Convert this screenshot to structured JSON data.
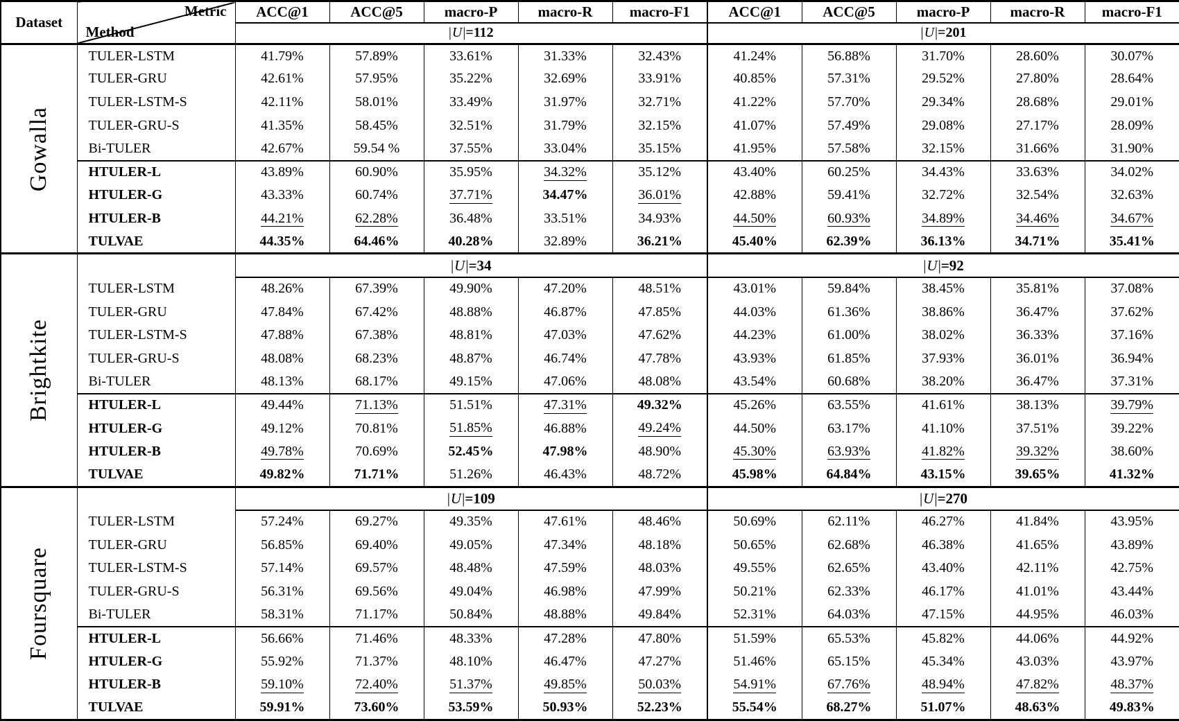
{
  "header": {
    "dataset_label": "Dataset",
    "metric_label": "Metric",
    "method_label": "Method",
    "metrics": [
      "ACC@1",
      "ACC@5",
      "macro-P",
      "macro-R",
      "macro-F1",
      "ACC@1",
      "ACC@5",
      "macro-P",
      "macro-R",
      "macro-F1"
    ]
  },
  "u_notation": {
    "bar": "|",
    "letter": "U",
    "equals": "="
  },
  "sections": [
    {
      "dataset": "Gowalla",
      "group_sizes": [
        "112",
        "201"
      ],
      "rows": [
        {
          "method": "TULER-LSTM",
          "bold": false,
          "values": [
            "41.79%",
            "57.89%",
            "33.61%",
            "31.33%",
            "32.43%",
            "41.24%",
            "56.88%",
            "31.70%",
            "28.60%",
            "30.07%"
          ],
          "styles": [
            "",
            "",
            "",
            "",
            "",
            "",
            "",
            "",
            "",
            ""
          ]
        },
        {
          "method": "TULER-GRU",
          "bold": false,
          "values": [
            "42.61%",
            "57.95%",
            "35.22%",
            "32.69%",
            "33.91%",
            "40.85%",
            "57.31%",
            "29.52%",
            "27.80%",
            "28.64%"
          ],
          "styles": [
            "",
            "",
            "",
            "",
            "",
            "",
            "",
            "",
            "",
            ""
          ]
        },
        {
          "method": "TULER-LSTM-S",
          "bold": false,
          "values": [
            "42.11%",
            "58.01%",
            "33.49%",
            "31.97%",
            "32.71%",
            "41.22%",
            "57.70%",
            "29.34%",
            "28.68%",
            "29.01%"
          ],
          "styles": [
            "",
            "",
            "",
            "",
            "",
            "",
            "",
            "",
            "",
            ""
          ]
        },
        {
          "method": "TULER-GRU-S",
          "bold": false,
          "values": [
            "41.35%",
            "58.45%",
            "32.51%",
            "31.79%",
            "32.15%",
            "41.07%",
            "57.49%",
            "29.08%",
            "27.17%",
            "28.09%"
          ],
          "styles": [
            "",
            "",
            "",
            "",
            "",
            "",
            "",
            "",
            "",
            ""
          ]
        },
        {
          "method": "Bi-TULER",
          "bold": false,
          "values": [
            "42.67%",
            "59.54 %",
            "37.55%",
            "33.04%",
            "35.15%",
            "41.95%",
            "57.58%",
            "32.15%",
            "31.66%",
            "31.90%"
          ],
          "styles": [
            "",
            "",
            "",
            "",
            "",
            "",
            "",
            "",
            "",
            ""
          ]
        },
        {
          "method": "HTULER-L",
          "bold": true,
          "values": [
            "43.89%",
            "60.90%",
            "35.95%",
            "34.32%",
            "35.12%",
            "43.40%",
            "60.25%",
            "34.43%",
            "33.63%",
            "34.02%"
          ],
          "styles": [
            "",
            "",
            "",
            "u",
            "",
            "",
            "",
            "",
            "",
            ""
          ]
        },
        {
          "method": "HTULER-G",
          "bold": true,
          "values": [
            "43.33%",
            "60.74%",
            "37.71%",
            "34.47%",
            "36.01%",
            "42.88%",
            "59.41%",
            "32.72%",
            "32.54%",
            "32.63%"
          ],
          "styles": [
            "",
            "",
            "u",
            "b",
            "u",
            "",
            "",
            "",
            "",
            ""
          ]
        },
        {
          "method": "HTULER-B",
          "bold": true,
          "values": [
            "44.21%",
            "62.28%",
            "36.48%",
            "33.51%",
            "34.93%",
            "44.50%",
            "60.93%",
            "34.89%",
            "34.46%",
            "34.67%"
          ],
          "styles": [
            "u",
            "u",
            "",
            "",
            "",
            "u",
            "u",
            "u",
            "u",
            "u"
          ]
        },
        {
          "method": "TULVAE",
          "bold": true,
          "values": [
            "44.35%",
            "64.46%",
            "40.28%",
            "32.89%",
            "36.21%",
            "45.40%",
            "62.39%",
            "36.13%",
            "34.71%",
            "35.41%"
          ],
          "styles": [
            "b",
            "b",
            "b",
            "",
            "b",
            "b",
            "b",
            "b",
            "b",
            "b"
          ]
        }
      ]
    },
    {
      "dataset": "Brightkite",
      "group_sizes": [
        "34",
        "92"
      ],
      "rows": [
        {
          "method": "TULER-LSTM",
          "bold": false,
          "values": [
            "48.26%",
            "67.39%",
            "49.90%",
            "47.20%",
            "48.51%",
            "43.01%",
            "59.84%",
            "38.45%",
            "35.81%",
            "37.08%"
          ],
          "styles": [
            "",
            "",
            "",
            "",
            "",
            "",
            "",
            "",
            "",
            ""
          ]
        },
        {
          "method": "TULER-GRU",
          "bold": false,
          "values": [
            "47.84%",
            "67.42%",
            "48.88%",
            "46.87%",
            "47.85%",
            "44.03%",
            "61.36%",
            "38.86%",
            "36.47%",
            "37.62%"
          ],
          "styles": [
            "",
            "",
            "",
            "",
            "",
            "",
            "",
            "",
            "",
            ""
          ]
        },
        {
          "method": "TULER-LSTM-S",
          "bold": false,
          "values": [
            "47.88%",
            "67.38%",
            "48.81%",
            "47.03%",
            "47.62%",
            "44.23%",
            "61.00%",
            "38.02%",
            "36.33%",
            "37.16%"
          ],
          "styles": [
            "",
            "",
            "",
            "",
            "",
            "",
            "",
            "",
            "",
            ""
          ]
        },
        {
          "method": "TULER-GRU-S",
          "bold": false,
          "values": [
            "48.08%",
            "68.23%",
            "48.87%",
            "46.74%",
            "47.78%",
            "43.93%",
            "61.85%",
            "37.93%",
            "36.01%",
            "36.94%"
          ],
          "styles": [
            "",
            "",
            "",
            "",
            "",
            "",
            "",
            "",
            "",
            ""
          ]
        },
        {
          "method": "Bi-TULER",
          "bold": false,
          "values": [
            "48.13%",
            "68.17%",
            "49.15%",
            "47.06%",
            "48.08%",
            "43.54%",
            "60.68%",
            "38.20%",
            "36.47%",
            "37.31%"
          ],
          "styles": [
            "",
            "",
            "",
            "",
            "",
            "",
            "",
            "",
            "",
            ""
          ]
        },
        {
          "method": "HTULER-L",
          "bold": true,
          "values": [
            "49.44%",
            "71.13%",
            "51.51%",
            "47.31%",
            "49.32%",
            "45.26%",
            "63.55%",
            "41.61%",
            "38.13%",
            "39.79%"
          ],
          "styles": [
            "",
            "u",
            "",
            "u",
            "b",
            "",
            "",
            "",
            "",
            "u"
          ]
        },
        {
          "method": "HTULER-G",
          "bold": true,
          "values": [
            "49.12%",
            "70.81%",
            "51.85%",
            "46.88%",
            "49.24%",
            "44.50%",
            "63.17%",
            "41.10%",
            "37.51%",
            "39.22%"
          ],
          "styles": [
            "",
            "",
            "u",
            "",
            "u",
            "",
            "",
            "",
            "",
            ""
          ]
        },
        {
          "method": "HTULER-B",
          "bold": true,
          "values": [
            "49.78%",
            "70.69%",
            "52.45%",
            "47.98%",
            "48.90%",
            "45.30%",
            "63.93%",
            "41.82%",
            "39.32%",
            "38.60%"
          ],
          "styles": [
            "u",
            "",
            "b",
            "b",
            "",
            "u",
            "u",
            "u",
            "u",
            ""
          ]
        },
        {
          "method": "TULVAE",
          "bold": true,
          "values": [
            "49.82%",
            "71.71%",
            "51.26%",
            "46.43%",
            "48.72%",
            "45.98%",
            "64.84%",
            "43.15%",
            "39.65%",
            "41.32%"
          ],
          "styles": [
            "b",
            "b",
            "",
            "",
            "",
            "b",
            "b",
            "b",
            "b",
            "b"
          ]
        }
      ]
    },
    {
      "dataset": "Foursquare",
      "group_sizes": [
        "109",
        "270"
      ],
      "rows": [
        {
          "method": "TULER-LSTM",
          "bold": false,
          "values": [
            "57.24%",
            "69.27%",
            "49.35%",
            "47.61%",
            "48.46%",
            "50.69%",
            "62.11%",
            "46.27%",
            "41.84%",
            "43.95%"
          ],
          "styles": [
            "",
            "",
            "",
            "",
            "",
            "",
            "",
            "",
            "",
            ""
          ]
        },
        {
          "method": "TULER-GRU",
          "bold": false,
          "values": [
            "56.85%",
            "69.40%",
            "49.05%",
            "47.34%",
            "48.18%",
            "50.65%",
            "62.68%",
            "46.38%",
            "41.65%",
            "43.89%"
          ],
          "styles": [
            "",
            "",
            "",
            "",
            "",
            "",
            "",
            "",
            "",
            ""
          ]
        },
        {
          "method": "TULER-LSTM-S",
          "bold": false,
          "values": [
            "57.14%",
            "69.57%",
            "48.48%",
            "47.59%",
            "48.03%",
            "49.55%",
            "62.65%",
            "43.40%",
            "42.11%",
            "42.75%"
          ],
          "styles": [
            "",
            "",
            "",
            "",
            "",
            "",
            "",
            "",
            "",
            ""
          ]
        },
        {
          "method": "TULER-GRU-S",
          "bold": false,
          "values": [
            "56.31%",
            "69.56%",
            "49.04%",
            "46.98%",
            "47.99%",
            "50.21%",
            "62.33%",
            "46.17%",
            "41.01%",
            "43.44%"
          ],
          "styles": [
            "",
            "",
            "",
            "",
            "",
            "",
            "",
            "",
            "",
            ""
          ]
        },
        {
          "method": "Bi-TULER",
          "bold": false,
          "values": [
            "58.31%",
            "71.17%",
            "50.84%",
            "48.88%",
            "49.84%",
            "52.31%",
            "64.03%",
            "47.15%",
            "44.95%",
            "46.03%"
          ],
          "styles": [
            "",
            "",
            "",
            "",
            "",
            "",
            "",
            "",
            "",
            ""
          ]
        },
        {
          "method": "HTULER-L",
          "bold": true,
          "values": [
            "56.66%",
            "71.46%",
            "48.33%",
            "47.28%",
            "47.80%",
            "51.59%",
            "65.53%",
            "45.82%",
            "44.06%",
            "44.92%"
          ],
          "styles": [
            "",
            "",
            "",
            "",
            "",
            "",
            "",
            "",
            "",
            ""
          ]
        },
        {
          "method": "HTULER-G",
          "bold": true,
          "values": [
            "55.92%",
            "71.37%",
            "48.10%",
            "46.47%",
            "47.27%",
            "51.46%",
            "65.15%",
            "45.34%",
            "43.03%",
            "43.97%"
          ],
          "styles": [
            "",
            "",
            "",
            "",
            "",
            "",
            "",
            "",
            "",
            ""
          ]
        },
        {
          "method": "HTULER-B",
          "bold": true,
          "values": [
            "59.10%",
            "72.40%",
            "51.37%",
            "49.85%",
            "50.03%",
            "54.91%",
            "67.76%",
            "48.94%",
            "47.82%",
            "48.37%"
          ],
          "styles": [
            "u",
            "u",
            "u",
            "u",
            "u",
            "u",
            "u",
            "u",
            "u",
            "u"
          ]
        },
        {
          "method": "TULVAE",
          "bold": true,
          "values": [
            "59.91%",
            "73.60%",
            "53.59%",
            "50.93%",
            "52.23%",
            "55.54%",
            "68.27%",
            "51.07%",
            "48.63%",
            "49.83%"
          ],
          "styles": [
            "b",
            "b",
            "b",
            "b",
            "b",
            "b",
            "b",
            "b",
            "b",
            "b"
          ]
        }
      ]
    }
  ]
}
